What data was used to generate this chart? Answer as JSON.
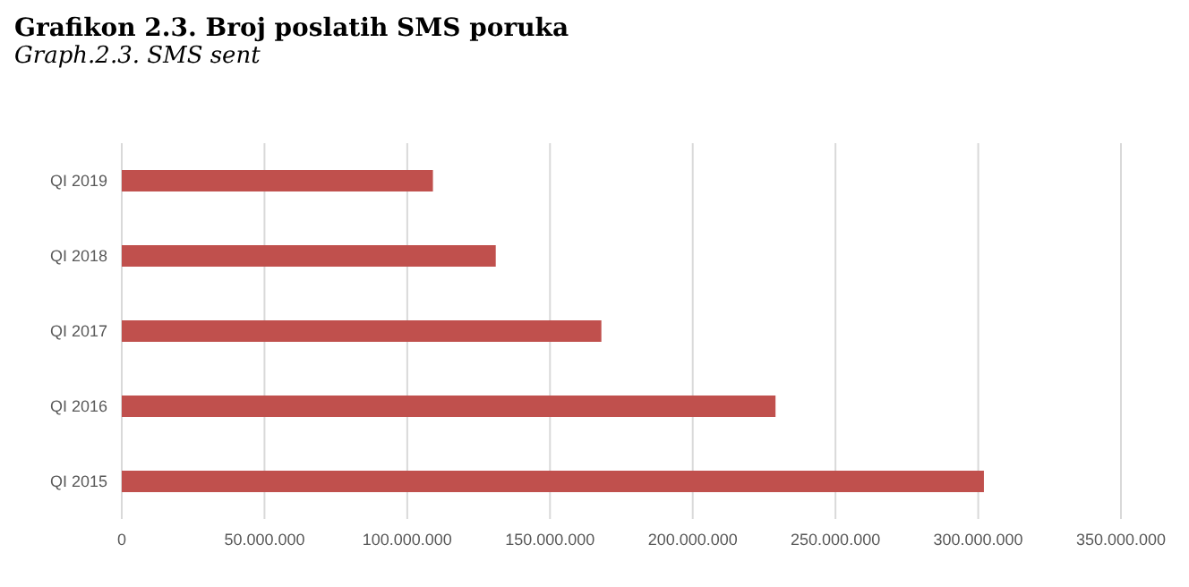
{
  "chart_data": {
    "type": "bar",
    "orientation": "horizontal",
    "title": "Grafikon 2.3. Broj poslatih SMS poruka",
    "subtitle": "Graph.2.3. SMS sent",
    "categories": [
      "QI 2019",
      "QI 2018",
      "QI  2017",
      "QI 2016",
      "QI 2015"
    ],
    "values": [
      109000000,
      131000000,
      168000000,
      229000000,
      302000000
    ],
    "color": "#c0504d",
    "xlim": [
      0,
      350000000
    ],
    "xticks": [
      0,
      {
        "value": 50000000,
        "label": "50.000.000"
      },
      {
        "value": 100000000,
        "label": "100.000.000"
      },
      {
        "value": 150000000,
        "label": "150.000.000"
      },
      {
        "value": 200000000,
        "label": "200.000.000"
      },
      {
        "value": 250000000,
        "label": "250.000.000"
      },
      {
        "value": 300000000,
        "label": "300.000.000"
      },
      {
        "value": 350000000,
        "label": "350.000.000"
      }
    ],
    "grid": "x"
  }
}
